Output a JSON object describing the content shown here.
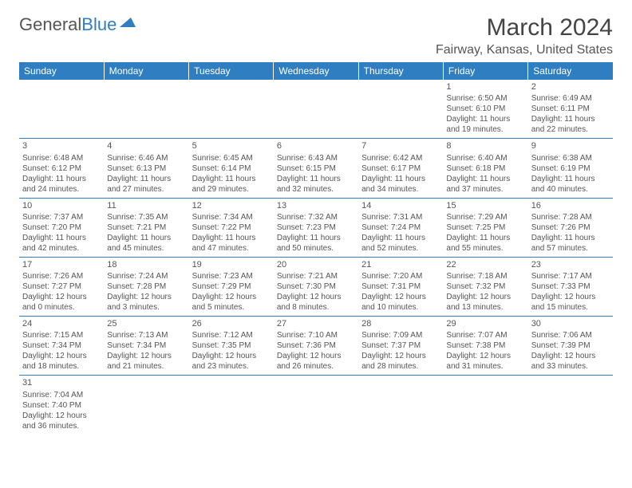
{
  "branding": {
    "logo_general": "General",
    "logo_blue": "Blue"
  },
  "header": {
    "month_title": "March 2024",
    "location": "Fairway, Kansas, United States"
  },
  "colors": {
    "header_bg": "#2f7ec1",
    "header_text": "#ffffff",
    "cell_border": "#2f7ec1",
    "body_text": "#555555",
    "page_bg": "#ffffff"
  },
  "day_headers": [
    "Sunday",
    "Monday",
    "Tuesday",
    "Wednesday",
    "Thursday",
    "Friday",
    "Saturday"
  ],
  "weeks": [
    [
      null,
      null,
      null,
      null,
      null,
      {
        "n": "1",
        "sr": "Sunrise: 6:50 AM",
        "ss": "Sunset: 6:10 PM",
        "d1": "Daylight: 11 hours",
        "d2": "and 19 minutes."
      },
      {
        "n": "2",
        "sr": "Sunrise: 6:49 AM",
        "ss": "Sunset: 6:11 PM",
        "d1": "Daylight: 11 hours",
        "d2": "and 22 minutes."
      }
    ],
    [
      {
        "n": "3",
        "sr": "Sunrise: 6:48 AM",
        "ss": "Sunset: 6:12 PM",
        "d1": "Daylight: 11 hours",
        "d2": "and 24 minutes."
      },
      {
        "n": "4",
        "sr": "Sunrise: 6:46 AM",
        "ss": "Sunset: 6:13 PM",
        "d1": "Daylight: 11 hours",
        "d2": "and 27 minutes."
      },
      {
        "n": "5",
        "sr": "Sunrise: 6:45 AM",
        "ss": "Sunset: 6:14 PM",
        "d1": "Daylight: 11 hours",
        "d2": "and 29 minutes."
      },
      {
        "n": "6",
        "sr": "Sunrise: 6:43 AM",
        "ss": "Sunset: 6:15 PM",
        "d1": "Daylight: 11 hours",
        "d2": "and 32 minutes."
      },
      {
        "n": "7",
        "sr": "Sunrise: 6:42 AM",
        "ss": "Sunset: 6:17 PM",
        "d1": "Daylight: 11 hours",
        "d2": "and 34 minutes."
      },
      {
        "n": "8",
        "sr": "Sunrise: 6:40 AM",
        "ss": "Sunset: 6:18 PM",
        "d1": "Daylight: 11 hours",
        "d2": "and 37 minutes."
      },
      {
        "n": "9",
        "sr": "Sunrise: 6:38 AM",
        "ss": "Sunset: 6:19 PM",
        "d1": "Daylight: 11 hours",
        "d2": "and 40 minutes."
      }
    ],
    [
      {
        "n": "10",
        "sr": "Sunrise: 7:37 AM",
        "ss": "Sunset: 7:20 PM",
        "d1": "Daylight: 11 hours",
        "d2": "and 42 minutes."
      },
      {
        "n": "11",
        "sr": "Sunrise: 7:35 AM",
        "ss": "Sunset: 7:21 PM",
        "d1": "Daylight: 11 hours",
        "d2": "and 45 minutes."
      },
      {
        "n": "12",
        "sr": "Sunrise: 7:34 AM",
        "ss": "Sunset: 7:22 PM",
        "d1": "Daylight: 11 hours",
        "d2": "and 47 minutes."
      },
      {
        "n": "13",
        "sr": "Sunrise: 7:32 AM",
        "ss": "Sunset: 7:23 PM",
        "d1": "Daylight: 11 hours",
        "d2": "and 50 minutes."
      },
      {
        "n": "14",
        "sr": "Sunrise: 7:31 AM",
        "ss": "Sunset: 7:24 PM",
        "d1": "Daylight: 11 hours",
        "d2": "and 52 minutes."
      },
      {
        "n": "15",
        "sr": "Sunrise: 7:29 AM",
        "ss": "Sunset: 7:25 PM",
        "d1": "Daylight: 11 hours",
        "d2": "and 55 minutes."
      },
      {
        "n": "16",
        "sr": "Sunrise: 7:28 AM",
        "ss": "Sunset: 7:26 PM",
        "d1": "Daylight: 11 hours",
        "d2": "and 57 minutes."
      }
    ],
    [
      {
        "n": "17",
        "sr": "Sunrise: 7:26 AM",
        "ss": "Sunset: 7:27 PM",
        "d1": "Daylight: 12 hours",
        "d2": "and 0 minutes."
      },
      {
        "n": "18",
        "sr": "Sunrise: 7:24 AM",
        "ss": "Sunset: 7:28 PM",
        "d1": "Daylight: 12 hours",
        "d2": "and 3 minutes."
      },
      {
        "n": "19",
        "sr": "Sunrise: 7:23 AM",
        "ss": "Sunset: 7:29 PM",
        "d1": "Daylight: 12 hours",
        "d2": "and 5 minutes."
      },
      {
        "n": "20",
        "sr": "Sunrise: 7:21 AM",
        "ss": "Sunset: 7:30 PM",
        "d1": "Daylight: 12 hours",
        "d2": "and 8 minutes."
      },
      {
        "n": "21",
        "sr": "Sunrise: 7:20 AM",
        "ss": "Sunset: 7:31 PM",
        "d1": "Daylight: 12 hours",
        "d2": "and 10 minutes."
      },
      {
        "n": "22",
        "sr": "Sunrise: 7:18 AM",
        "ss": "Sunset: 7:32 PM",
        "d1": "Daylight: 12 hours",
        "d2": "and 13 minutes."
      },
      {
        "n": "23",
        "sr": "Sunrise: 7:17 AM",
        "ss": "Sunset: 7:33 PM",
        "d1": "Daylight: 12 hours",
        "d2": "and 15 minutes."
      }
    ],
    [
      {
        "n": "24",
        "sr": "Sunrise: 7:15 AM",
        "ss": "Sunset: 7:34 PM",
        "d1": "Daylight: 12 hours",
        "d2": "and 18 minutes."
      },
      {
        "n": "25",
        "sr": "Sunrise: 7:13 AM",
        "ss": "Sunset: 7:34 PM",
        "d1": "Daylight: 12 hours",
        "d2": "and 21 minutes."
      },
      {
        "n": "26",
        "sr": "Sunrise: 7:12 AM",
        "ss": "Sunset: 7:35 PM",
        "d1": "Daylight: 12 hours",
        "d2": "and 23 minutes."
      },
      {
        "n": "27",
        "sr": "Sunrise: 7:10 AM",
        "ss": "Sunset: 7:36 PM",
        "d1": "Daylight: 12 hours",
        "d2": "and 26 minutes."
      },
      {
        "n": "28",
        "sr": "Sunrise: 7:09 AM",
        "ss": "Sunset: 7:37 PM",
        "d1": "Daylight: 12 hours",
        "d2": "and 28 minutes."
      },
      {
        "n": "29",
        "sr": "Sunrise: 7:07 AM",
        "ss": "Sunset: 7:38 PM",
        "d1": "Daylight: 12 hours",
        "d2": "and 31 minutes."
      },
      {
        "n": "30",
        "sr": "Sunrise: 7:06 AM",
        "ss": "Sunset: 7:39 PM",
        "d1": "Daylight: 12 hours",
        "d2": "and 33 minutes."
      }
    ],
    [
      {
        "n": "31",
        "sr": "Sunrise: 7:04 AM",
        "ss": "Sunset: 7:40 PM",
        "d1": "Daylight: 12 hours",
        "d2": "and 36 minutes."
      },
      null,
      null,
      null,
      null,
      null,
      null
    ]
  ]
}
